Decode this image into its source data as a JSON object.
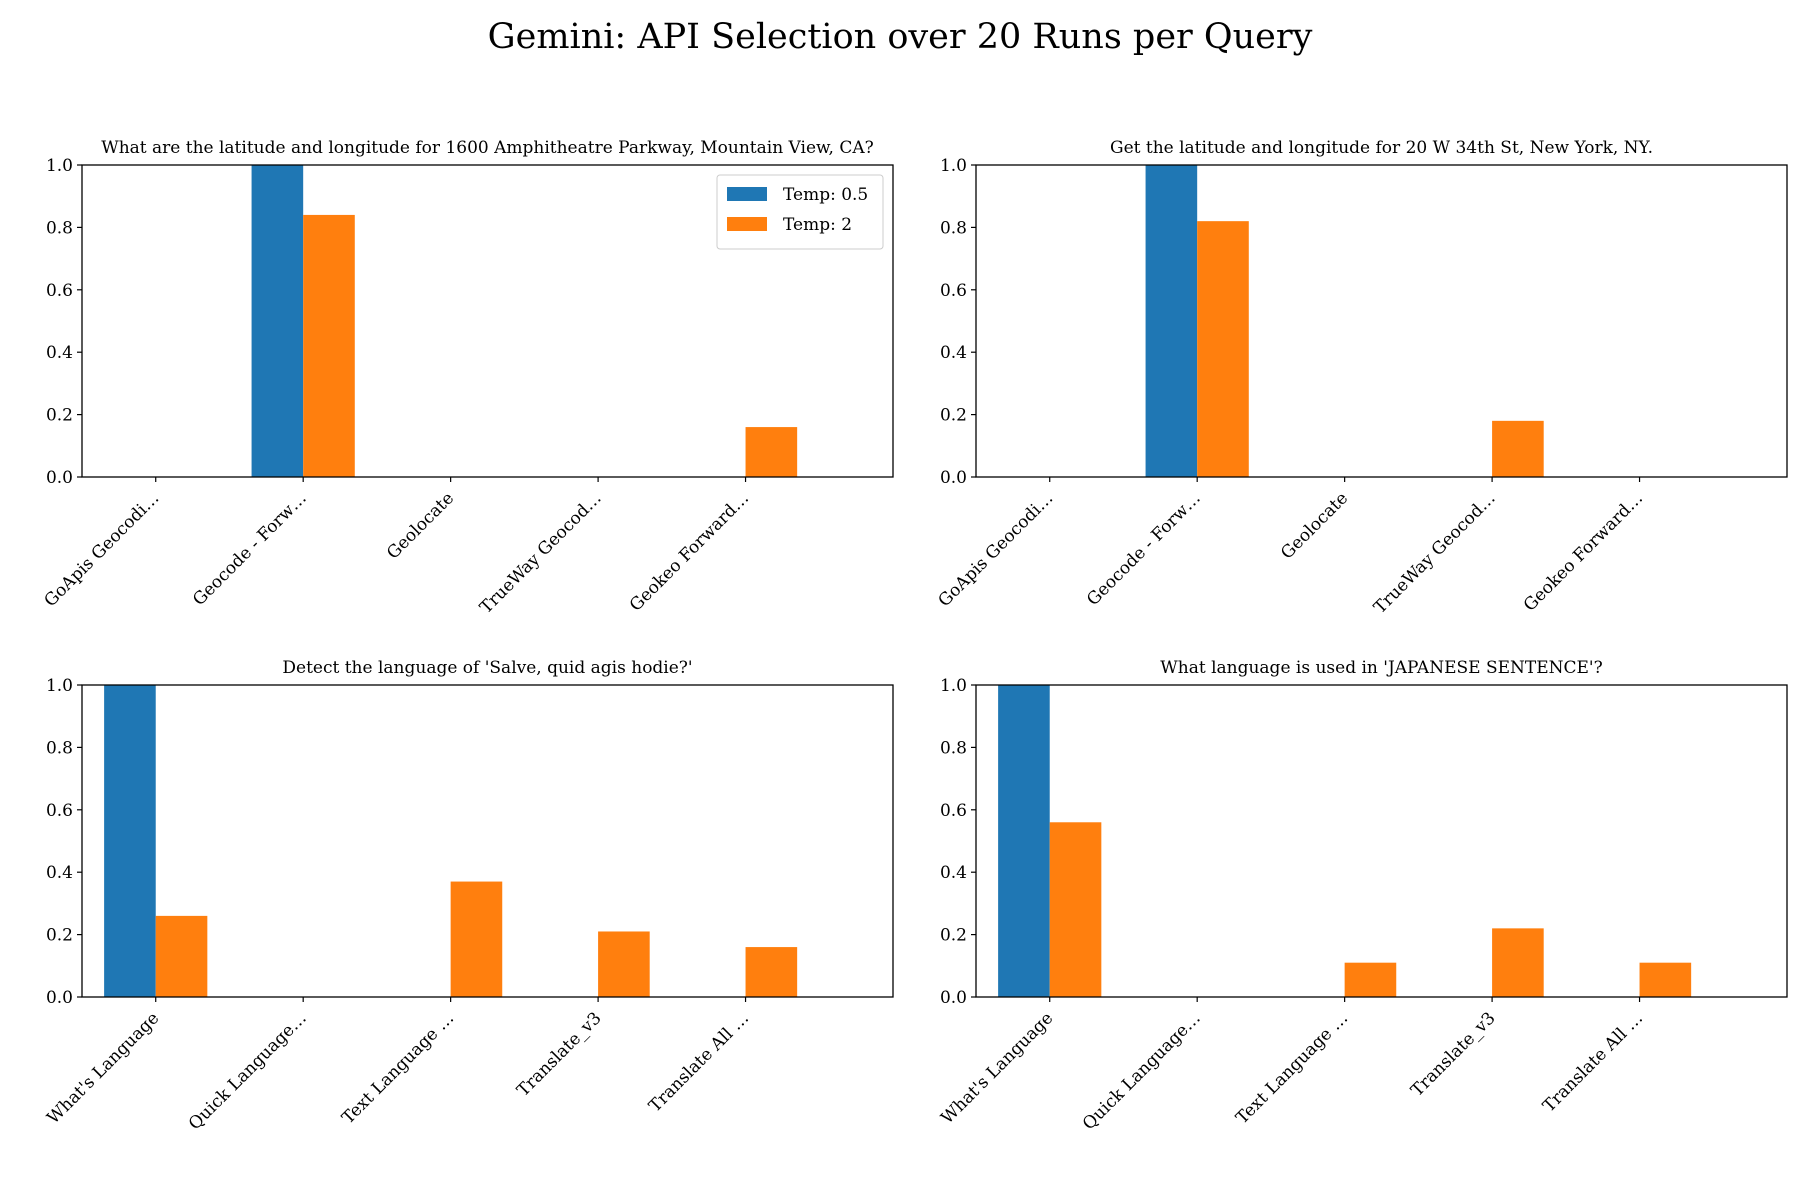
{
  "title": "Gemini: API Selection over 20 Runs per Query",
  "colors": {
    "temp_0_5": "#1f77b4",
    "temp_2": "#ff7f0e"
  },
  "chart_data": [
    {
      "type": "bar",
      "title": "What are the latitude and longitude for 1600 Amphitheatre Parkway, Mountain View, CA?",
      "categories": [
        "GoApis Geocodi…",
        "Geocode - Forw…",
        "Geolocate",
        "TrueWay Geocod…",
        "Geokeo Forward…"
      ],
      "series": [
        {
          "name": "Temp: 0.5",
          "values": [
            0,
            1.0,
            0,
            0,
            0
          ]
        },
        {
          "name": "Temp: 2",
          "values": [
            0,
            0.84,
            0,
            0,
            0.16
          ]
        }
      ],
      "ylim": [
        0,
        1.0
      ],
      "yticks": [
        "0.0",
        "0.2",
        "0.4",
        "0.6",
        "0.8",
        "1.0"
      ],
      "legend": "top-right",
      "grid": false
    },
    {
      "type": "bar",
      "title": "Get the latitude and longitude for 20 W 34th St, New York, NY.",
      "categories": [
        "GoApis Geocodi…",
        "Geocode - Forw…",
        "Geolocate",
        "TrueWay Geocod…",
        "Geokeo Forward…"
      ],
      "series": [
        {
          "name": "Temp: 0.5",
          "values": [
            0,
            1.0,
            0,
            0,
            0
          ]
        },
        {
          "name": "Temp: 2",
          "values": [
            0,
            0.82,
            0,
            0.18,
            0
          ]
        }
      ],
      "ylim": [
        0,
        1.0
      ],
      "yticks": [
        "0.0",
        "0.2",
        "0.4",
        "0.6",
        "0.8",
        "1.0"
      ],
      "grid": false
    },
    {
      "type": "bar",
      "title": "Detect the language of 'Salve, quid agis hodie?'",
      "categories": [
        "What's Language",
        "Quick Language…",
        "Text Language …",
        "Translate_v3",
        "Translate All …"
      ],
      "series": [
        {
          "name": "Temp: 0.5",
          "values": [
            1.0,
            0,
            0,
            0,
            0
          ]
        },
        {
          "name": "Temp: 2",
          "values": [
            0.26,
            0,
            0.37,
            0.21,
            0.16
          ]
        }
      ],
      "ylim": [
        0,
        1.0
      ],
      "yticks": [
        "0.0",
        "0.2",
        "0.4",
        "0.6",
        "0.8",
        "1.0"
      ],
      "grid": false
    },
    {
      "type": "bar",
      "title": "What language is used in 'JAPANESE SENTENCE'?",
      "categories": [
        "What's Language",
        "Quick Language…",
        "Text Language …",
        "Translate_v3",
        "Translate All …"
      ],
      "series": [
        {
          "name": "Temp: 0.5",
          "values": [
            1.0,
            0,
            0,
            0,
            0
          ]
        },
        {
          "name": "Temp: 2",
          "values": [
            0.56,
            0,
            0.11,
            0.22,
            0.11
          ]
        }
      ],
      "ylim": [
        0,
        1.0
      ],
      "yticks": [
        "0.0",
        "0.2",
        "0.4",
        "0.6",
        "0.8",
        "1.0"
      ],
      "grid": false
    }
  ]
}
